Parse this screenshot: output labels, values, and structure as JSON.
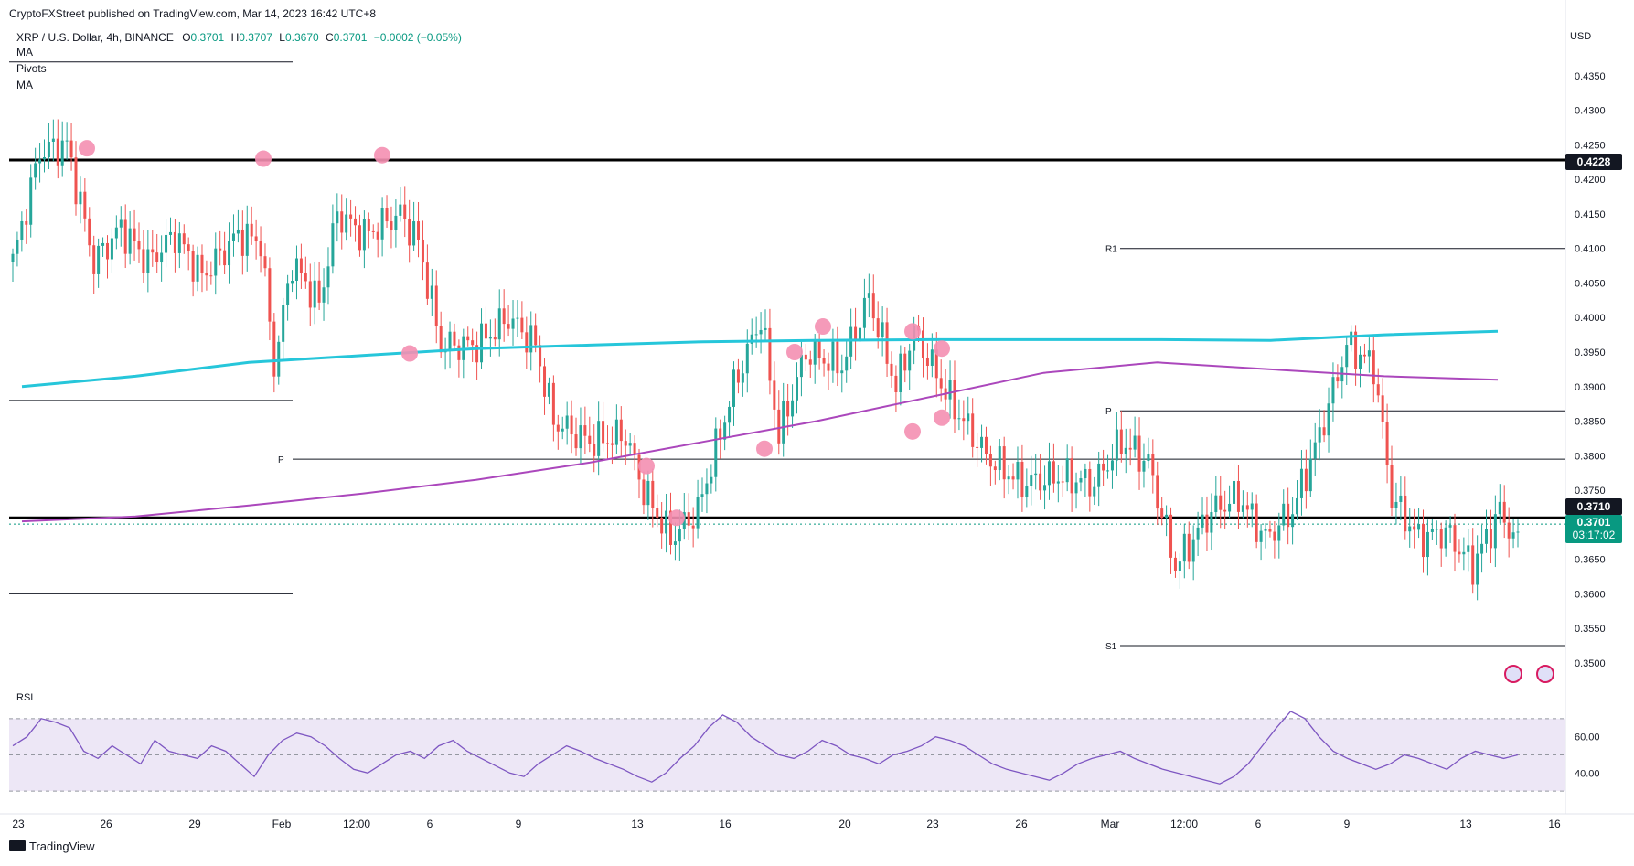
{
  "header": {
    "published": "CryptoFXStreet published on TradingView.com, Mar 14, 2023 16:42 UTC+8",
    "symbol": "XRP / U.S. Dollar, 4h, BINANCE",
    "open_label": "O",
    "open": "0.3701",
    "high_label": "H",
    "high": "0.3707",
    "low_label": "L",
    "low": "0.3670",
    "close_label": "C",
    "close": "0.3701",
    "change": "−0.0002 (−0.05%)",
    "indicators": [
      "MA",
      "Pivots",
      "MA"
    ]
  },
  "currency": "USD",
  "footer": {
    "brand": "TradingView"
  },
  "price_badges": {
    "resistance": "0.4228",
    "support": "0.3710",
    "last": "0.3701",
    "countdown": "03:17:02"
  },
  "colors": {
    "up": "#26a69a",
    "down": "#ef5350",
    "ma_fast": "#26c6da",
    "ma_slow": "#ab47bc",
    "marker": "#f48fb1",
    "rsi_line": "#7e57c2",
    "rsi_band": "#ede7f6"
  },
  "chart_data": {
    "type": "candlestick",
    "x_ticks": [
      "23",
      "26",
      "29",
      "Feb",
      "12:00",
      "6",
      "9",
      "13",
      "16",
      "20",
      "23",
      "26",
      "Mar",
      "12:00",
      "6",
      "9",
      "13",
      "16"
    ],
    "y_ticks": [
      "0.4350",
      "0.4300",
      "0.4250",
      "0.4200",
      "0.4150",
      "0.4100",
      "0.4050",
      "0.4000",
      "0.3950",
      "0.3900",
      "0.3850",
      "0.3800",
      "0.3750",
      "0.3650",
      "0.3600",
      "0.3550",
      "0.3500"
    ],
    "ylim": [
      0.348,
      0.442
    ],
    "horizontal_levels": [
      {
        "value": 0.4228,
        "label": "0.4228"
      },
      {
        "value": 0.371,
        "label": "0.3710"
      }
    ],
    "pivots": [
      {
        "label": "P",
        "value": 0.3795
      },
      {
        "label": "R1",
        "value": 0.41
      },
      {
        "label": "P",
        "value": 0.3865
      },
      {
        "label": "S1",
        "value": 0.3525
      }
    ],
    "ma_fast": [
      [
        0,
        0.39
      ],
      [
        20,
        0.3915
      ],
      [
        40,
        0.3935
      ],
      [
        60,
        0.3945
      ],
      [
        80,
        0.3955
      ],
      [
        100,
        0.396
      ],
      [
        120,
        0.3965
      ],
      [
        140,
        0.3967
      ],
      [
        160,
        0.3968
      ],
      [
        180,
        0.3968
      ],
      [
        200,
        0.3968
      ],
      [
        220,
        0.3967
      ],
      [
        240,
        0.3975
      ],
      [
        260,
        0.398
      ]
    ],
    "ma_slow": [
      [
        0,
        0.3705
      ],
      [
        20,
        0.3712
      ],
      [
        40,
        0.3728
      ],
      [
        60,
        0.3745
      ],
      [
        80,
        0.3765
      ],
      [
        100,
        0.379
      ],
      [
        120,
        0.382
      ],
      [
        140,
        0.385
      ],
      [
        160,
        0.3885
      ],
      [
        180,
        0.392
      ],
      [
        200,
        0.3935
      ],
      [
        220,
        0.3925
      ],
      [
        240,
        0.3915
      ],
      [
        260,
        0.391
      ]
    ],
    "markers": [
      [
        17,
        0.4245
      ],
      [
        25,
        0.423
      ],
      [
        33,
        0.4235
      ],
      [
        25,
        0.3948
      ],
      [
        42,
        0.3785
      ],
      [
        45,
        0.371
      ],
      [
        53,
        0.381
      ],
      [
        55,
        0.395
      ],
      [
        57,
        0.3987
      ],
      [
        62,
        0.398
      ],
      [
        64,
        0.3955
      ],
      [
        62,
        0.3835
      ],
      [
        64,
        0.3855
      ]
    ],
    "rsi": {
      "label": "RSI",
      "y_ticks": [
        "60.00",
        "40.00"
      ],
      "upper": 70,
      "lower": 30,
      "series": [
        55,
        60,
        70,
        68,
        65,
        52,
        48,
        55,
        50,
        45,
        58,
        52,
        50,
        48,
        55,
        52,
        45,
        38,
        50,
        58,
        62,
        60,
        55,
        48,
        42,
        40,
        45,
        50,
        52,
        48,
        55,
        58,
        52,
        48,
        44,
        40,
        38,
        45,
        50,
        55,
        52,
        48,
        45,
        42,
        38,
        35,
        40,
        48,
        55,
        65,
        72,
        68,
        60,
        55,
        50,
        48,
        52,
        58,
        55,
        50,
        48,
        45,
        50,
        52,
        55,
        60,
        58,
        55,
        50,
        45,
        42,
        40,
        38,
        36,
        40,
        45,
        48,
        50,
        52,
        48,
        45,
        42,
        40,
        38,
        36,
        34,
        38,
        45,
        55,
        65,
        74,
        70,
        60,
        52,
        48,
        45,
        42,
        45,
        50,
        48,
        45,
        42,
        48,
        52,
        50,
        48,
        50
      ]
    }
  }
}
